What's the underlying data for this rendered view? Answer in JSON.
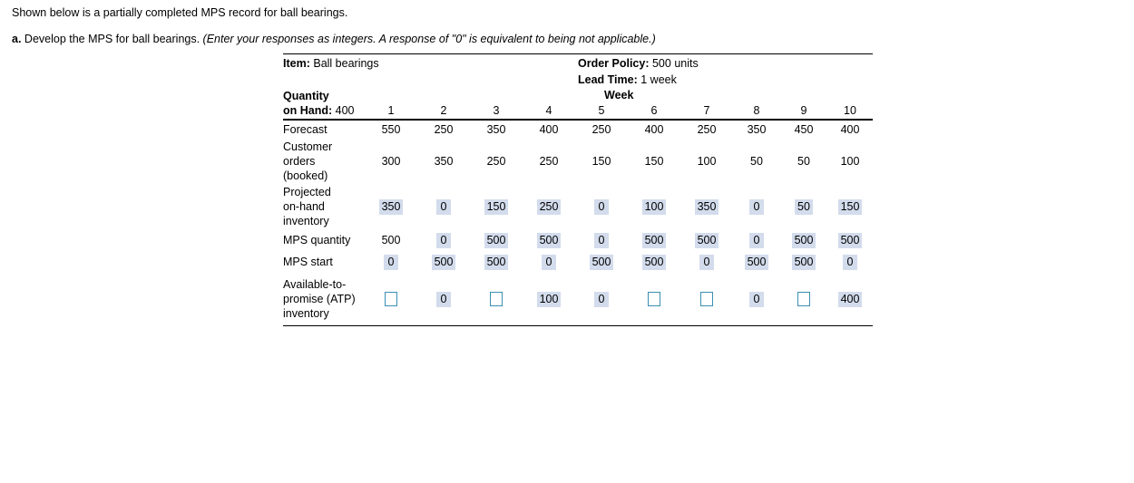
{
  "intro": "Shown below is a partially completed MPS record for ball bearings.",
  "question": {
    "lead": "a.",
    "text": " Develop the MPS for ball bearings. ",
    "note": "(Enter your responses as integers. A response of \"0\" is equivalent to being not applicable.)"
  },
  "header": {
    "item_label": "Item:",
    "item_value": "Ball bearings",
    "policy_label": "Order Policy:",
    "policy_value": "500 units",
    "lead_label": "Lead Time:",
    "lead_value": "1 week",
    "week_label": "Week",
    "qty_label_1": "Quantity",
    "qty_label_2": "on Hand:",
    "qty_value": "400"
  },
  "weeks": [
    "1",
    "2",
    "3",
    "4",
    "5",
    "6",
    "7",
    "8",
    "9",
    "10"
  ],
  "rows": [
    {
      "label": [
        "Forecast"
      ],
      "values": [
        "550",
        "250",
        "350",
        "400",
        "250",
        "400",
        "250",
        "350",
        "450",
        "400"
      ],
      "filled": [
        false,
        false,
        false,
        false,
        false,
        false,
        false,
        false,
        false,
        false
      ]
    },
    {
      "label": [
        "Customer",
        "orders",
        "(booked)"
      ],
      "values": [
        "300",
        "350",
        "250",
        "250",
        "150",
        "150",
        "100",
        "50",
        "50",
        "100"
      ],
      "filled": [
        false,
        false,
        false,
        false,
        false,
        false,
        false,
        false,
        false,
        false
      ]
    },
    {
      "label": [
        "Projected",
        "on-hand",
        "inventory"
      ],
      "values": [
        "350",
        "0",
        "150",
        "250",
        "0",
        "100",
        "350",
        "0",
        "50",
        "150"
      ],
      "filled": [
        true,
        true,
        true,
        true,
        true,
        true,
        true,
        true,
        true,
        true
      ]
    },
    {
      "label": [
        "MPS quantity"
      ],
      "values": [
        "500",
        "0",
        "500",
        "500",
        "0",
        "500",
        "500",
        "0",
        "500",
        "500"
      ],
      "filled": [
        false,
        true,
        true,
        true,
        true,
        true,
        true,
        true,
        true,
        true
      ]
    },
    {
      "label": [
        "MPS start"
      ],
      "values": [
        "0",
        "500",
        "500",
        "0",
        "500",
        "500",
        "0",
        "500",
        "500",
        "0"
      ],
      "filled": [
        true,
        true,
        true,
        true,
        true,
        true,
        true,
        true,
        true,
        true
      ]
    },
    {
      "label": [
        "Available-to-",
        "promise (ATP)",
        "inventory"
      ],
      "values": [
        "",
        "0",
        "",
        "100",
        "0",
        "",
        "",
        "0",
        "",
        "400"
      ],
      "filled": [
        false,
        true,
        false,
        true,
        true,
        false,
        false,
        true,
        false,
        true
      ]
    }
  ]
}
